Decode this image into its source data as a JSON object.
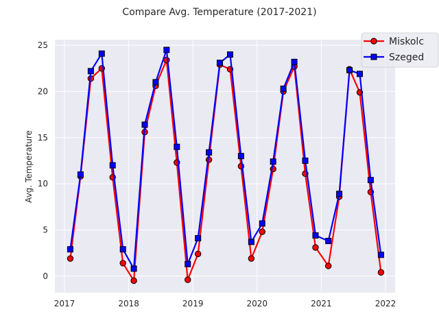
{
  "chart_data": {
    "type": "line",
    "title": "Compare Avg. Temperature (2017-2021)",
    "xlabel": "",
    "ylabel": "Avg. Temperature",
    "xlim": [
      2016.85,
      2022.15
    ],
    "ylim": [
      -1.8,
      25.6
    ],
    "xticks": [
      2017,
      2018,
      2019,
      2020,
      2021,
      2022
    ],
    "yticks": [
      0,
      5,
      10,
      15,
      20,
      25
    ],
    "grid": true,
    "legend_position": "top-right",
    "series": [
      {
        "name": "Miskolc",
        "color": "#ff0000",
        "marker": "circle",
        "x": [
          2017.09,
          2017.25,
          2017.41,
          2017.58,
          2017.75,
          2017.91,
          2018.08,
          2018.25,
          2018.42,
          2018.59,
          2018.75,
          2018.92,
          2019.08,
          2019.25,
          2019.42,
          2019.58,
          2019.75,
          2019.91,
          2020.08,
          2020.25,
          2020.41,
          2020.58,
          2020.75,
          2020.91,
          2021.11,
          2021.28,
          2021.44,
          2021.6,
          2021.77,
          2021.93
        ],
        "y": [
          1.9,
          10.8,
          21.4,
          22.5,
          10.7,
          1.4,
          -0.5,
          15.6,
          20.6,
          23.4,
          12.3,
          -0.4,
          2.4,
          12.6,
          22.9,
          22.4,
          11.9,
          1.9,
          4.8,
          11.6,
          20.0,
          22.7,
          11.1,
          3.1,
          1.1,
          8.6,
          22.4,
          19.9,
          9.1,
          0.4
        ]
      },
      {
        "name": "Szeged",
        "color": "#0000ff",
        "marker": "square",
        "x": [
          2017.09,
          2017.25,
          2017.41,
          2017.58,
          2017.75,
          2017.91,
          2018.08,
          2018.25,
          2018.42,
          2018.59,
          2018.75,
          2018.92,
          2019.08,
          2019.25,
          2019.42,
          2019.58,
          2019.75,
          2019.91,
          2020.08,
          2020.25,
          2020.41,
          2020.58,
          2020.75,
          2020.91,
          2021.11,
          2021.28,
          2021.44,
          2021.6,
          2021.77,
          2021.93
        ],
        "y": [
          2.9,
          11.0,
          22.2,
          24.1,
          12.0,
          2.9,
          0.8,
          16.4,
          21.0,
          24.5,
          14.0,
          1.3,
          4.1,
          13.4,
          23.1,
          24.0,
          13.0,
          3.7,
          5.7,
          12.4,
          20.3,
          23.2,
          12.5,
          4.4,
          3.8,
          8.9,
          22.3,
          21.9,
          10.4,
          2.3
        ]
      }
    ]
  }
}
